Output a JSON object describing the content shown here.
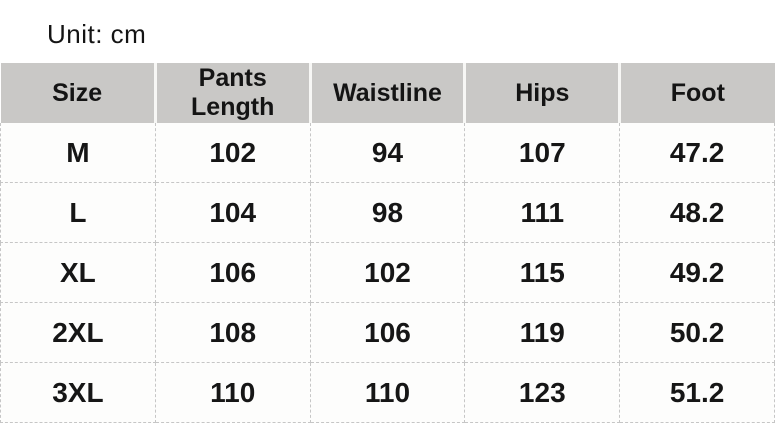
{
  "page": {
    "unit_label": "Unit: cm"
  },
  "colors": {
    "header_bg": "#c9c8c6",
    "body_bg": "#fdfdfc",
    "dashed_border": "#c6c6c6",
    "text": "#161616"
  },
  "chart_data": {
    "type": "table",
    "title": "Unit: cm",
    "unit": "cm",
    "columns": [
      "Size",
      "Pants Length",
      "Waistline",
      "Hips",
      "Foot"
    ],
    "rows": [
      [
        "M",
        "102",
        "94",
        "107",
        "47.2"
      ],
      [
        "L",
        "104",
        "98",
        "111",
        "48.2"
      ],
      [
        "XL",
        "106",
        "102",
        "115",
        "49.2"
      ],
      [
        "2XL",
        "108",
        "106",
        "119",
        "50.2"
      ],
      [
        "3XL",
        "110",
        "110",
        "123",
        "51.2"
      ]
    ]
  }
}
